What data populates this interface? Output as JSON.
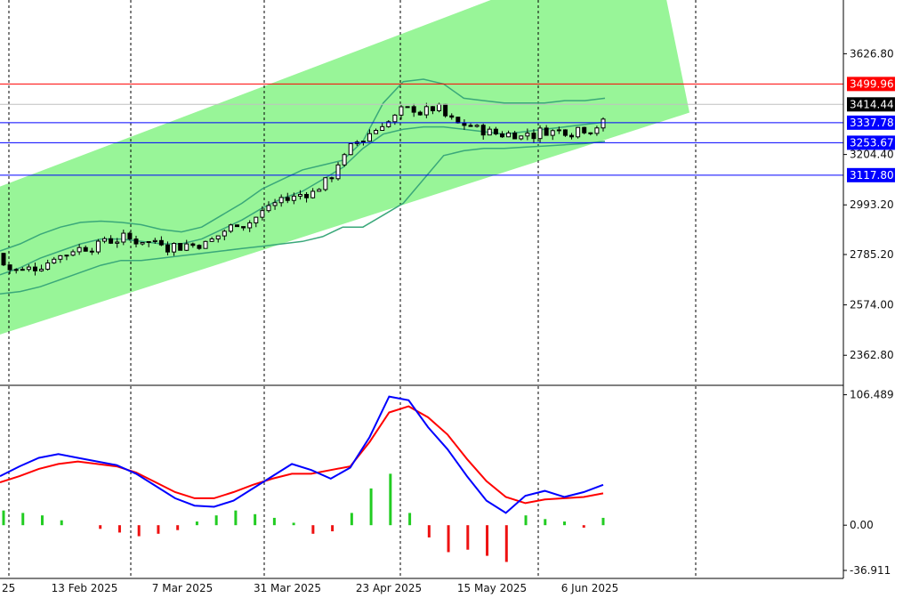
{
  "chart_data": [
    {
      "type": "candlestick",
      "panel": "price",
      "price_ticks": [
        3626.8,
        3204.4,
        2993.2,
        2785.2,
        2574.0,
        2362.8
      ],
      "x_labels": [
        "13 Feb 2025",
        "7 Mar 2025",
        "31 Mar 2025",
        "23 Apr 2025",
        "15 May 2025",
        "6 Jun 2025"
      ],
      "cut_label_left": "25",
      "ylim": [
        2248,
        3852
      ],
      "levels": [
        {
          "label": "3499.96",
          "value": 3499.96,
          "color": "#ff0000",
          "box_bg": "#ff0000",
          "box_fg": "#ffffff"
        },
        {
          "label": "3414.44",
          "value": 3414.44,
          "color": "#c0c0c0",
          "box_bg": "#000000",
          "box_fg": "#ffffff"
        },
        {
          "label": "3337.78",
          "value": 3337.78,
          "color": "#0000ff",
          "box_bg": "#0000ff",
          "box_fg": "#ffffff"
        },
        {
          "label": "3253.67",
          "value": 3253.67,
          "color": "#0000ff",
          "box_bg": "#0000ff",
          "box_fg": "#ffffff"
        },
        {
          "label": "3117.80",
          "value": 3117.8,
          "color": "#0000ff",
          "box_bg": "#0000ff",
          "box_fg": "#ffffff"
        }
      ],
      "channel": {
        "color": "#98f598",
        "bottom_start": 2450,
        "bottom_end": 3380,
        "width": 620
      },
      "bollinger": {
        "color": "#3aa87a",
        "upper": [
          2800,
          2830,
          2870,
          2900,
          2920,
          2925,
          2920,
          2910,
          2890,
          2880,
          2900,
          2950,
          3000,
          3060,
          3100,
          3140,
          3160,
          3180,
          3260,
          3420,
          3510,
          3520,
          3500,
          3440,
          3430,
          3420,
          3420,
          3420,
          3430,
          3430,
          3440
        ],
        "middle": [
          2700,
          2730,
          2770,
          2800,
          2830,
          2850,
          2850,
          2840,
          2830,
          2830,
          2850,
          2890,
          2930,
          2980,
          3020,
          3050,
          3100,
          3150,
          3230,
          3290,
          3310,
          3320,
          3320,
          3310,
          3300,
          3290,
          3300,
          3310,
          3320,
          3330,
          3340
        ],
        "lower": [
          2620,
          2630,
          2650,
          2680,
          2710,
          2740,
          2760,
          2760,
          2770,
          2780,
          2790,
          2800,
          2810,
          2820,
          2830,
          2840,
          2860,
          2900,
          2900,
          2950,
          3000,
          3100,
          3200,
          3220,
          3230,
          3230,
          3235,
          3240,
          3245,
          3250,
          3260
        ]
      }
    },
    {
      "type": "macd",
      "panel": "indicator",
      "ticks": [
        106.489,
        0.0,
        -36.911
      ],
      "tick_labels": [
        "106.489",
        "0.00",
        "-36.911"
      ],
      "ylim": [
        -42,
        112
      ],
      "main_line_color": "#0000ff",
      "signal_line_color": "#ff0000",
      "hist_up_color": "#22cc22",
      "hist_down_color": "#ee1111",
      "main": [
        40,
        48,
        55,
        58,
        55,
        52,
        49,
        42,
        32,
        22,
        16,
        15,
        20,
        30,
        40,
        50,
        45,
        38,
        47,
        72,
        105,
        102,
        80,
        62,
        40,
        20,
        10,
        24,
        28,
        23,
        27,
        33
      ],
      "signal": [
        35,
        40,
        46,
        50,
        52,
        50,
        48,
        43,
        35,
        27,
        22,
        22,
        27,
        33,
        38,
        42,
        42,
        45,
        48,
        68,
        92,
        97,
        88,
        74,
        54,
        36,
        23,
        18,
        21,
        22,
        23,
        26
      ],
      "histogram": [
        12,
        10,
        8,
        4,
        0,
        -3,
        -6,
        -9,
        -7,
        -4,
        3,
        8,
        12,
        9,
        6,
        2,
        -7,
        -5,
        10,
        30,
        42,
        10,
        -10,
        -22,
        -20,
        -25,
        -30,
        8,
        5,
        3,
        -2,
        6
      ]
    }
  ]
}
